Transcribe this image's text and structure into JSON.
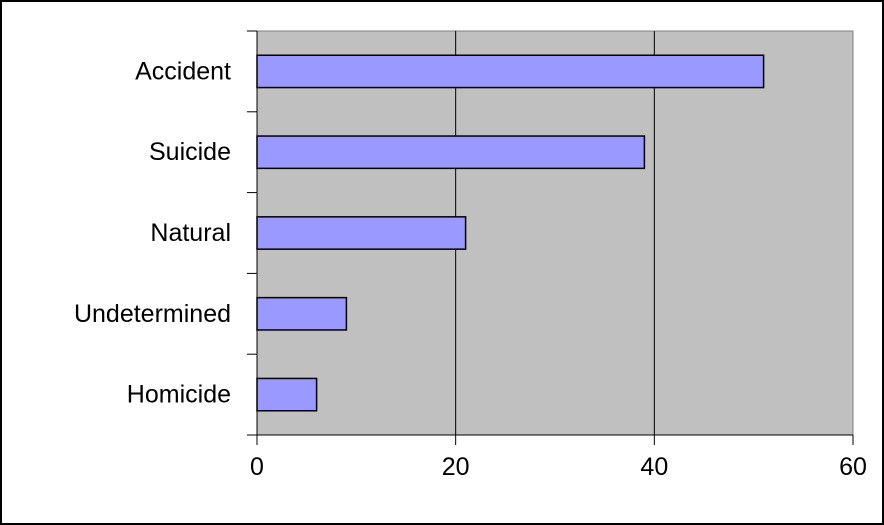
{
  "chart_data": {
    "type": "bar",
    "orientation": "horizontal",
    "categories": [
      "Accident",
      "Suicide",
      "Natural",
      "Undetermined",
      "Homicide"
    ],
    "values": [
      51,
      39,
      21,
      9,
      6
    ],
    "xlim": [
      0,
      60
    ],
    "xticks": [
      0,
      20,
      40,
      60
    ],
    "title": "",
    "xlabel": "",
    "ylabel": "",
    "grid": "vertical",
    "legend": "none",
    "colors": {
      "bar_fill": "#9999ff",
      "bar_stroke": "#000000",
      "plot_background": "#c0c0c0",
      "frame": "#000000"
    }
  }
}
